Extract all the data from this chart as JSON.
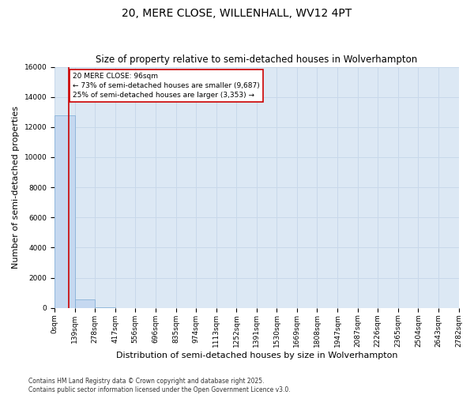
{
  "title": "20, MERE CLOSE, WILLENHALL, WV12 4PT",
  "subtitle": "Size of property relative to semi-detached houses in Wolverhampton",
  "xlabel": "Distribution of semi-detached houses by size in Wolverhampton",
  "ylabel": "Number of semi-detached properties",
  "bar_edges": [
    0,
    139,
    278,
    417,
    556,
    696,
    835,
    974,
    1113,
    1252,
    1391,
    1530,
    1669,
    1808,
    1947,
    2087,
    2226,
    2365,
    2504,
    2643,
    2782
  ],
  "bar_heights": [
    12800,
    550,
    10,
    5,
    3,
    2,
    1,
    1,
    1,
    1,
    1,
    0,
    0,
    0,
    0,
    0,
    0,
    0,
    0,
    0
  ],
  "bar_color": "#c5d8f0",
  "bar_edge_color": "#7aaad4",
  "property_size": 96,
  "property_label": "20 MERE CLOSE: 96sqm",
  "pct_smaller": 73,
  "n_smaller": 9687,
  "pct_larger": 25,
  "n_larger": 3353,
  "vline_color": "#cc0000",
  "annotation_box_color": "#cc0000",
  "ylim": [
    0,
    16000
  ],
  "yticks": [
    0,
    2000,
    4000,
    6000,
    8000,
    10000,
    12000,
    14000,
    16000
  ],
  "xtick_labels": [
    "0sqm",
    "139sqm",
    "278sqm",
    "417sqm",
    "556sqm",
    "696sqm",
    "835sqm",
    "974sqm",
    "1113sqm",
    "1252sqm",
    "1391sqm",
    "1530sqm",
    "1669sqm",
    "1808sqm",
    "1947sqm",
    "2087sqm",
    "2226sqm",
    "2365sqm",
    "2504sqm",
    "2643sqm",
    "2782sqm"
  ],
  "grid_color": "#c8d8ea",
  "bg_color": "#dce8f4",
  "footer_line1": "Contains HM Land Registry data © Crown copyright and database right 2025.",
  "footer_line2": "Contains public sector information licensed under the Open Government Licence v3.0.",
  "title_fontsize": 10,
  "subtitle_fontsize": 8.5,
  "xlabel_fontsize": 8,
  "ylabel_fontsize": 8,
  "tick_fontsize": 6.5,
  "ann_fontsize": 6.5
}
